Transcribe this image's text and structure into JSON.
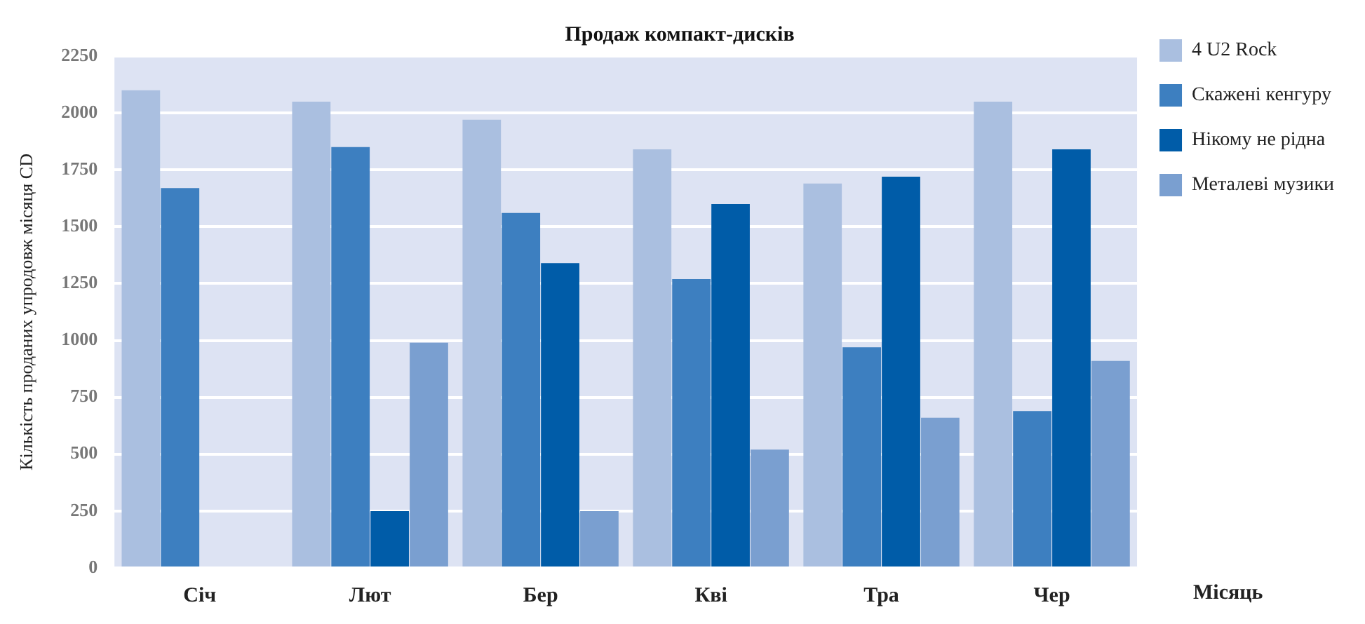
{
  "chart_data": {
    "type": "bar",
    "title": "Продаж компакт-дисків",
    "xlabel": "Місяць",
    "ylabel": "Кількість проданих упродовж місяця CD",
    "categories": [
      "Січ",
      "Лют",
      "Бер",
      "Кві",
      "Тра",
      "Чер"
    ],
    "series": [
      {
        "name": "4 U2 Rock",
        "color": "#aabfe0",
        "values": [
          2100,
          2050,
          1970,
          1840,
          1690,
          2050
        ]
      },
      {
        "name": "Скажені кенгуру",
        "color": "#3d7fc0",
        "values": [
          1670,
          1850,
          1560,
          1270,
          970,
          690
        ]
      },
      {
        "name": "Нікому не рідна",
        "color": "#005ca8",
        "values": [
          null,
          250,
          1340,
          1600,
          1720,
          1840
        ]
      },
      {
        "name": "Металеві музики",
        "color": "#7a9fd0",
        "values": [
          null,
          990,
          250,
          520,
          660,
          910
        ]
      }
    ],
    "ylim": [
      0,
      2250
    ],
    "yticks": [
      0,
      250,
      500,
      750,
      1000,
      1250,
      1500,
      1750,
      2000,
      2250
    ],
    "grid": "y",
    "legend": "top right"
  }
}
